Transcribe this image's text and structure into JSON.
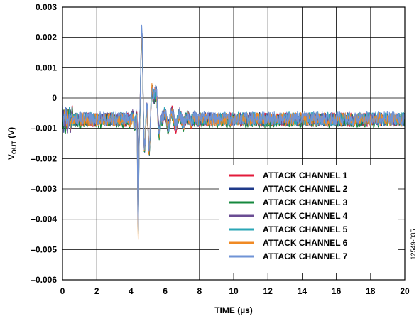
{
  "chart_data": {
    "type": "line",
    "xlabel": "TIME (µs)",
    "ylabel_main": "V",
    "ylabel_sub": "OUT",
    "ylabel_unit": " (V)",
    "xlim": [
      0,
      20
    ],
    "ylim": [
      -0.006,
      0.003
    ],
    "x_ticks": [
      0,
      2,
      4,
      6,
      8,
      10,
      12,
      14,
      16,
      18,
      20
    ],
    "x_tick_labels": [
      "0",
      "2",
      "4",
      "6",
      "8",
      "10",
      "12",
      "14",
      "16",
      "18",
      "20"
    ],
    "y_ticks": [
      0.003,
      0.002,
      0.001,
      0,
      -0.001,
      -0.002,
      -0.003,
      -0.004,
      -0.005,
      -0.006
    ],
    "y_tick_labels": [
      "0.003",
      "0.002",
      "0.001",
      "0",
      "–0.001",
      "–0.002",
      "–0.003",
      "–0.004",
      "–0.005",
      "–0.006"
    ],
    "grid": true,
    "legend_position": "bottom-right",
    "figure_id": "12549-035",
    "series": [
      {
        "name": "ATTACK CHANNEL 1",
        "color": "#e31b3b",
        "baseline": -0.00072,
        "peak": 0.0016,
        "trough": -0.0023,
        "peak2": 0.0008
      },
      {
        "name": "ATTACK CHANNEL 2",
        "color": "#1f3a8a",
        "baseline": -0.0007,
        "peak": 0.0017,
        "trough": -0.0044,
        "peak2": 0.0007
      },
      {
        "name": "ATTACK CHANNEL 3",
        "color": "#15883e",
        "baseline": -0.00076,
        "peak": 0.0015,
        "trough": -0.0042,
        "peak2": 0.0006
      },
      {
        "name": "ATTACK CHANNEL 4",
        "color": "#6a4c93",
        "baseline": -0.00071,
        "peak": 0.0016,
        "trough": -0.0043,
        "peak2": 0.0007
      },
      {
        "name": "ATTACK CHANNEL 5",
        "color": "#2aa6b6",
        "baseline": -0.00069,
        "peak": 0.0017,
        "trough": -0.0045,
        "peak2": 0.0008
      },
      {
        "name": "ATTACK CHANNEL 6",
        "color": "#f08a24",
        "baseline": -0.00071,
        "peak": 0.0015,
        "trough": -0.0048,
        "peak2": 0.0008
      },
      {
        "name": "ATTACK CHANNEL 7",
        "color": "#6f93d6",
        "baseline": -0.00068,
        "peak": 0.0018,
        "trough": -0.0046,
        "peak2": 0.0008
      }
    ]
  }
}
